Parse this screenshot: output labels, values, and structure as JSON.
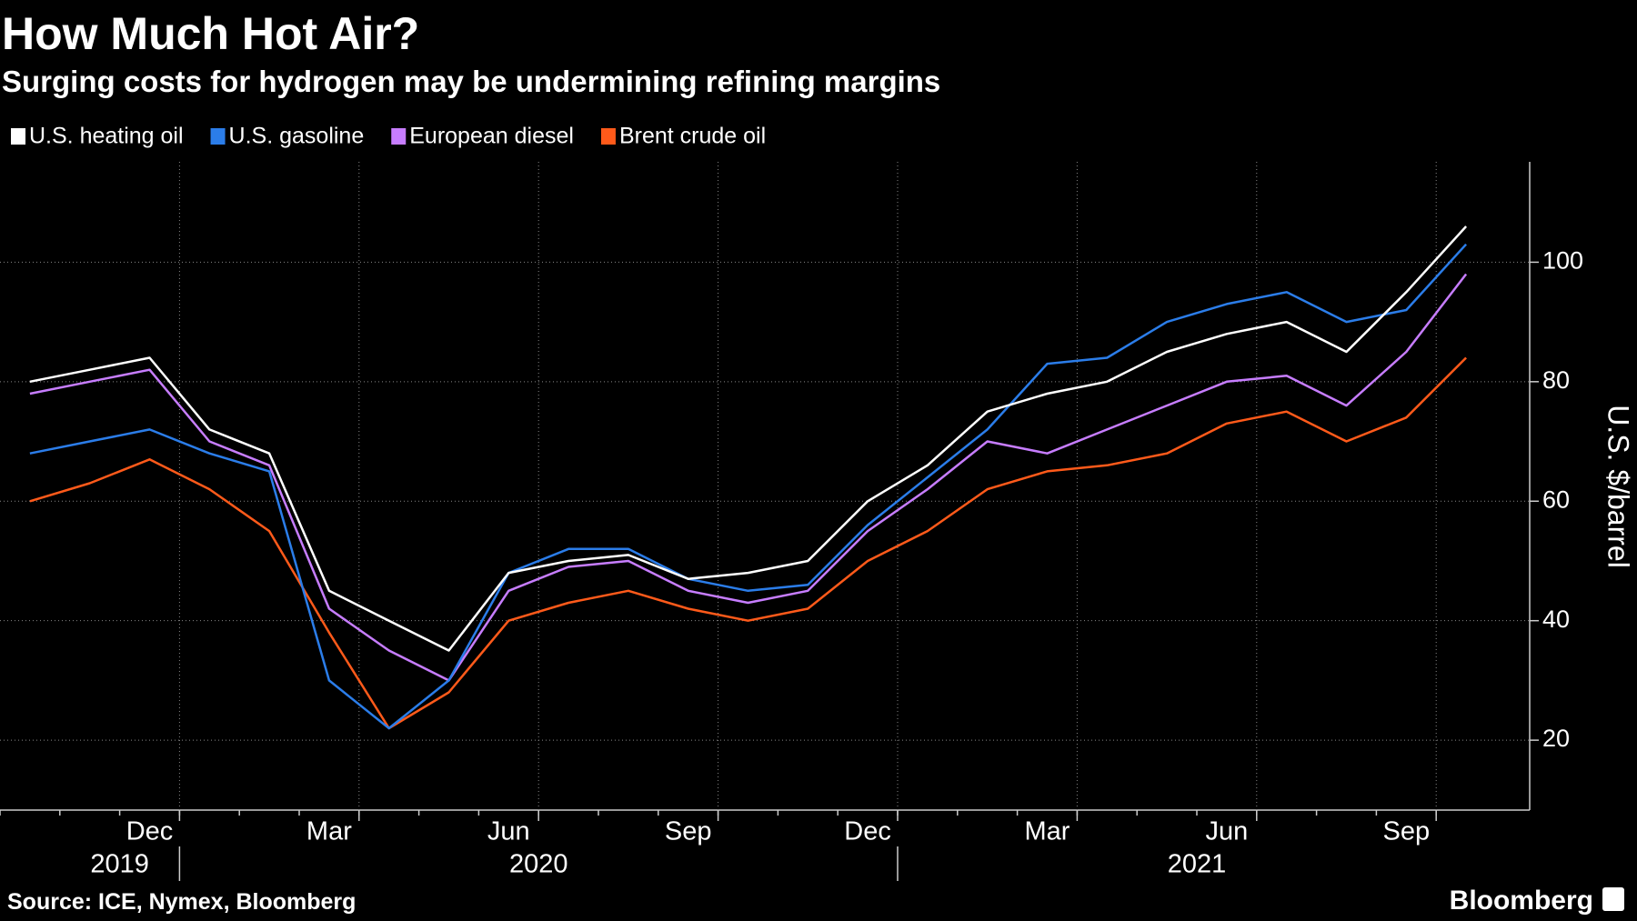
{
  "chart_data": {
    "type": "line",
    "title": "How Much Hot Air?",
    "subtitle": "Surging costs for hydrogen may be undermining refining margins",
    "y_label": "U.S. $/barrel",
    "source": "Source: ICE, Nymex, Bloomberg",
    "brand": "Bloomberg",
    "x": [
      "2019-10",
      "2019-11",
      "2019-12",
      "2020-01",
      "2020-02",
      "2020-03",
      "2020-04",
      "2020-05",
      "2020-06",
      "2020-07",
      "2020-08",
      "2020-09",
      "2020-10",
      "2020-11",
      "2020-12",
      "2021-01",
      "2021-02",
      "2021-03",
      "2021-04",
      "2021-05",
      "2021-06",
      "2021-07",
      "2021-08",
      "2021-09",
      "2021-10"
    ],
    "series": [
      {
        "name": "U.S. heating oil",
        "color": "#ffffff",
        "values": [
          80,
          82,
          84,
          72,
          68,
          45,
          40,
          35,
          48,
          50,
          51,
          47,
          48,
          50,
          60,
          66,
          75,
          78,
          80,
          85,
          88,
          90,
          85,
          95,
          106
        ]
      },
      {
        "name": "U.S. gasoline",
        "color": "#2b7de9",
        "values": [
          68,
          70,
          72,
          68,
          65,
          30,
          22,
          30,
          48,
          52,
          52,
          47,
          45,
          46,
          56,
          64,
          72,
          83,
          84,
          90,
          93,
          95,
          90,
          92,
          103
        ]
      },
      {
        "name": "European diesel",
        "color": "#c77dff",
        "values": [
          78,
          80,
          82,
          70,
          66,
          42,
          35,
          30,
          45,
          49,
          50,
          45,
          43,
          45,
          55,
          62,
          70,
          68,
          72,
          76,
          80,
          81,
          76,
          85,
          98
        ]
      },
      {
        "name": "Brent crude oil",
        "color": "#ff5a1a",
        "values": [
          60,
          63,
          67,
          62,
          55,
          38,
          22,
          28,
          40,
          43,
          45,
          42,
          40,
          42,
          50,
          55,
          62,
          65,
          66,
          68,
          73,
          75,
          70,
          74,
          84
        ]
      }
    ],
    "xlim": [
      "2019-10",
      "2021-11"
    ],
    "xticks": [
      {
        "value": "2019-12",
        "label": "Dec"
      },
      {
        "value": "2020-03",
        "label": "Mar"
      },
      {
        "value": "2020-06",
        "label": "Jun"
      },
      {
        "value": "2020-09",
        "label": "Sep"
      },
      {
        "value": "2020-12",
        "label": "Dec"
      },
      {
        "value": "2021-03",
        "label": "Mar"
      },
      {
        "value": "2021-06",
        "label": "Jun"
      },
      {
        "value": "2021-09",
        "label": "Sep"
      }
    ],
    "year_labels": [
      {
        "value": "2019-12",
        "label": "2019"
      },
      {
        "value": "2020-07",
        "label": "2020"
      },
      {
        "value": "2021-06",
        "label": "2021"
      }
    ],
    "ylim": [
      8.3,
      116.8
    ],
    "yticks": [
      20,
      40,
      60,
      80,
      100
    ],
    "grid": true
  }
}
